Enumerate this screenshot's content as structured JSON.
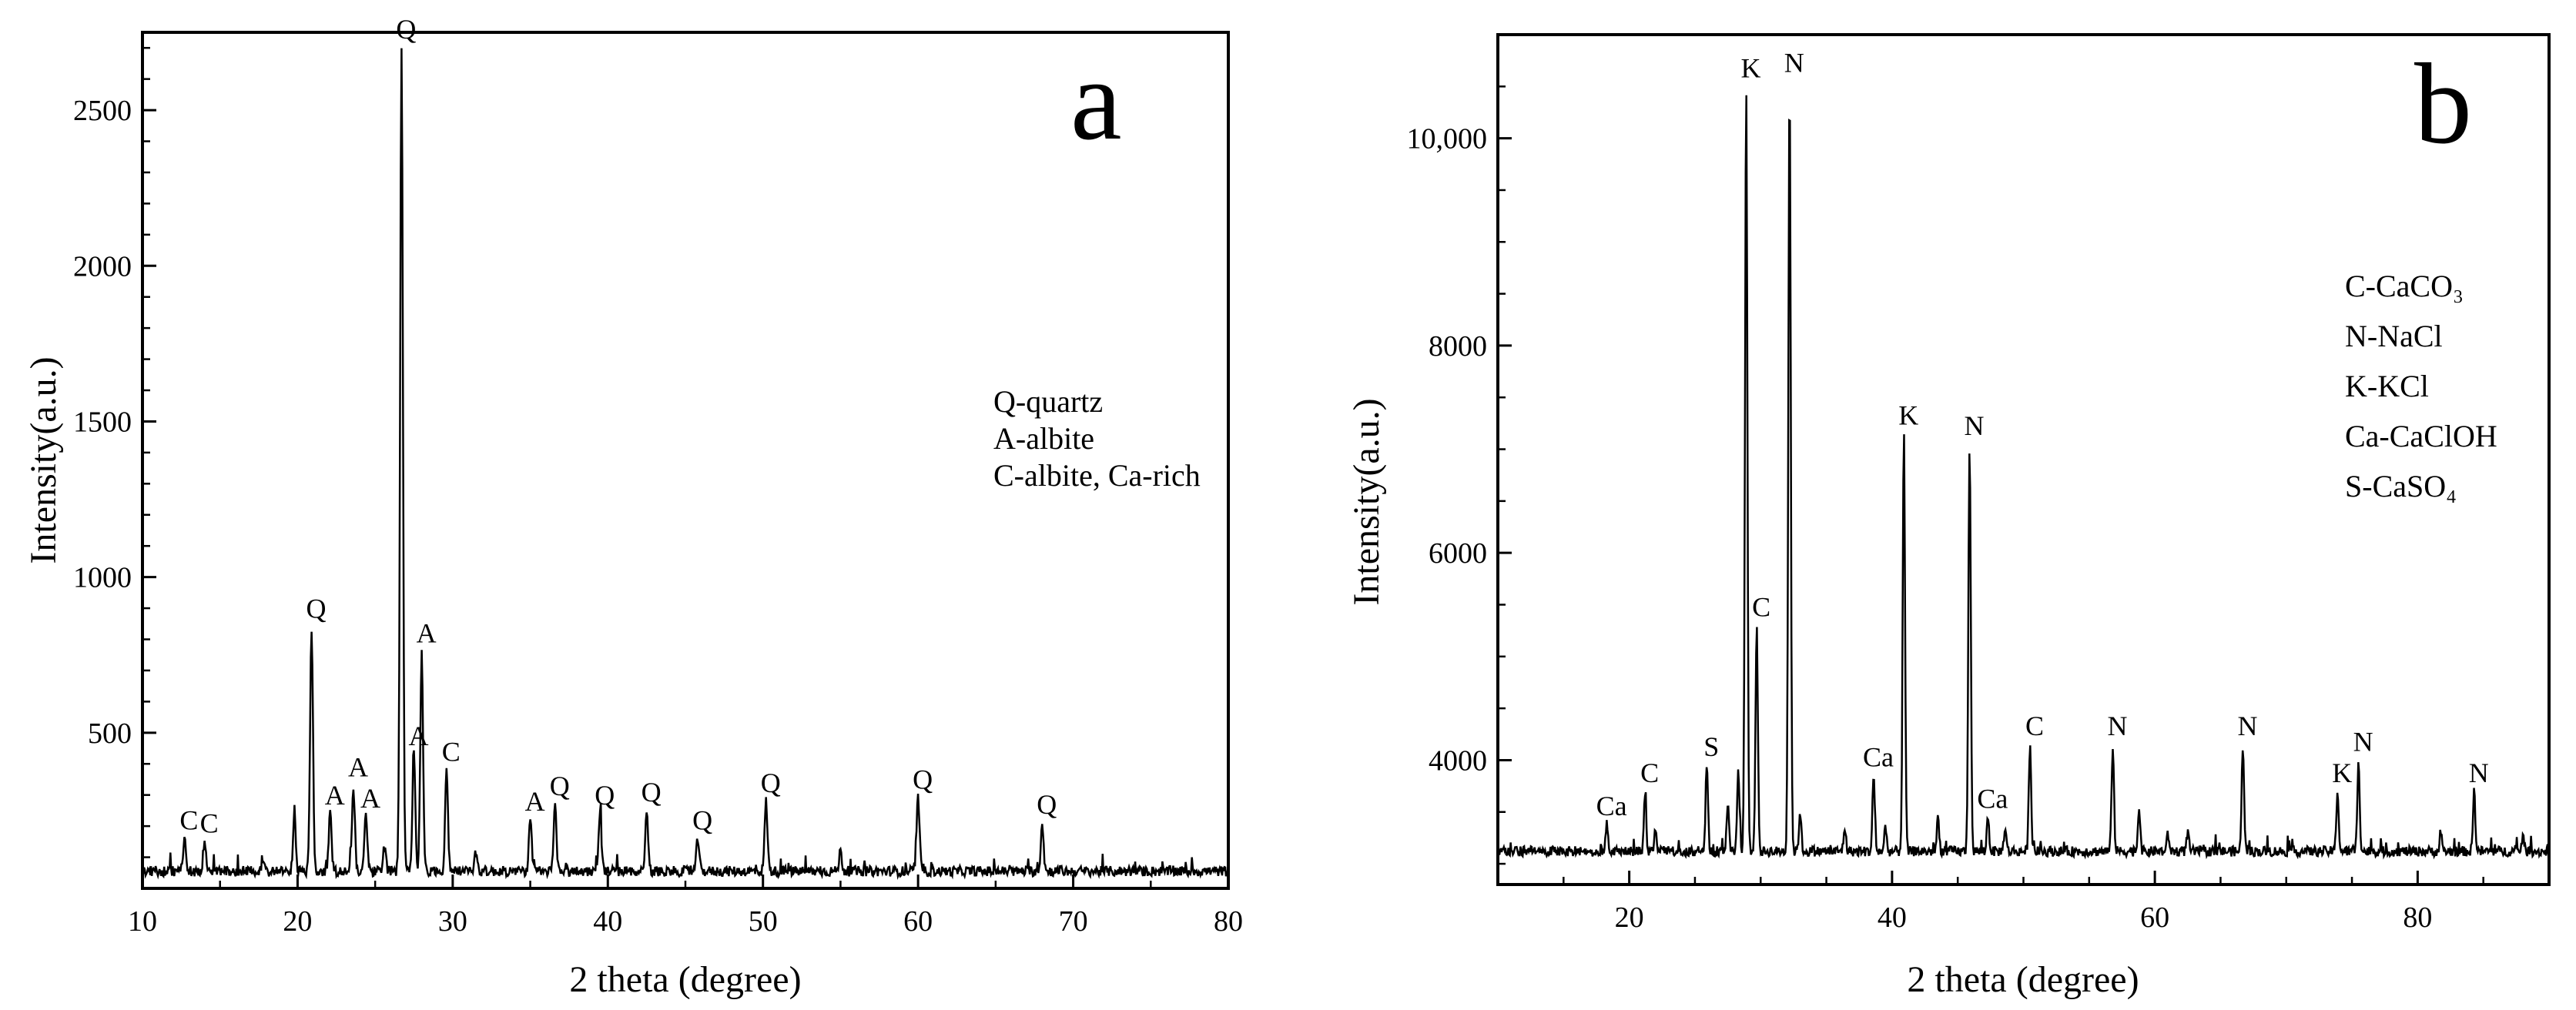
{
  "chart_data": [
    {
      "panel_letter": "a",
      "type": "line",
      "xlabel": "2 theta (degree)",
      "ylabel": "Intensity(a.u.)",
      "xlim": [
        10,
        80
      ],
      "ylim": [
        0,
        2750
      ],
      "x_ticks": [
        10,
        20,
        30,
        40,
        50,
        60,
        70,
        80
      ],
      "x_tick_labels": [
        "10",
        "20",
        "30",
        "40",
        "50",
        "60",
        "70",
        "80"
      ],
      "y_ticks": [
        500,
        1000,
        1500,
        2000,
        2500
      ],
      "y_tick_labels": [
        "500",
        "1000",
        "1500",
        "2000",
        "2500"
      ],
      "legend": [
        "Q-quartz",
        "A-albite",
        "C-albite, Ca-rich"
      ],
      "baseline": 55,
      "peaks": [
        {
          "x": 12.7,
          "y": 160,
          "label": "C"
        },
        {
          "x": 14.0,
          "y": 150,
          "label": "C"
        },
        {
          "x": 17.8,
          "y": 95,
          "label": ""
        },
        {
          "x": 19.8,
          "y": 230,
          "label": ""
        },
        {
          "x": 20.9,
          "y": 840,
          "label": "Q"
        },
        {
          "x": 22.1,
          "y": 240,
          "label": "A"
        },
        {
          "x": 23.6,
          "y": 330,
          "label": "A"
        },
        {
          "x": 24.4,
          "y": 230,
          "label": "A"
        },
        {
          "x": 25.6,
          "y": 140,
          "label": ""
        },
        {
          "x": 26.7,
          "y": 2700,
          "label": "Q"
        },
        {
          "x": 27.5,
          "y": 430,
          "label": "A"
        },
        {
          "x": 28.0,
          "y": 760,
          "label": "A"
        },
        {
          "x": 29.6,
          "y": 380,
          "label": "C"
        },
        {
          "x": 31.5,
          "y": 120,
          "label": ""
        },
        {
          "x": 35.0,
          "y": 220,
          "label": "A"
        },
        {
          "x": 36.6,
          "y": 270,
          "label": "Q"
        },
        {
          "x": 39.5,
          "y": 240,
          "label": "Q"
        },
        {
          "x": 42.5,
          "y": 250,
          "label": "Q"
        },
        {
          "x": 45.8,
          "y": 160,
          "label": "Q"
        },
        {
          "x": 50.2,
          "y": 280,
          "label": "Q"
        },
        {
          "x": 55.0,
          "y": 120,
          "label": ""
        },
        {
          "x": 60.0,
          "y": 290,
          "label": "Q"
        },
        {
          "x": 68.0,
          "y": 210,
          "label": "Q"
        }
      ]
    },
    {
      "panel_letter": "b",
      "type": "line",
      "xlabel": "2 theta (degree)",
      "ylabel": "Intensity(a.u.)",
      "xlim": [
        10,
        90
      ],
      "ylim": [
        2800,
        11000
      ],
      "x_ticks": [
        20,
        40,
        60,
        80
      ],
      "x_tick_labels": [
        "20",
        "40",
        "60",
        "80"
      ],
      "y_ticks": [
        4000,
        6000,
        8000,
        10000
      ],
      "y_tick_labels": [
        "4000",
        "6000",
        "8000",
        "10,000"
      ],
      "legend": [
        "C-CaCO₃",
        "N-NaCl",
        "K-KCl",
        "Ca-CaClOH",
        "S-CaSO₄"
      ],
      "baseline": 3120,
      "peaks": [
        {
          "x": 18.3,
          "y": 3380,
          "label": "Ca"
        },
        {
          "x": 21.2,
          "y": 3700,
          "label": "C"
        },
        {
          "x": 22.0,
          "y": 3350,
          "label": ""
        },
        {
          "x": 25.9,
          "y": 3950,
          "label": "S"
        },
        {
          "x": 27.5,
          "y": 3600,
          "label": ""
        },
        {
          "x": 28.3,
          "y": 3900,
          "label": ""
        },
        {
          "x": 28.9,
          "y": 10500,
          "label": "K"
        },
        {
          "x": 29.7,
          "y": 5300,
          "label": "C"
        },
        {
          "x": 32.2,
          "y": 10550,
          "label": "N"
        },
        {
          "x": 33.0,
          "y": 3500,
          "label": ""
        },
        {
          "x": 36.4,
          "y": 3350,
          "label": ""
        },
        {
          "x": 38.6,
          "y": 3850,
          "label": "Ca"
        },
        {
          "x": 39.5,
          "y": 3350,
          "label": ""
        },
        {
          "x": 40.9,
          "y": 7150,
          "label": "K"
        },
        {
          "x": 43.5,
          "y": 3450,
          "label": ""
        },
        {
          "x": 45.9,
          "y": 7050,
          "label": "N"
        },
        {
          "x": 47.3,
          "y": 3450,
          "label": "Ca"
        },
        {
          "x": 48.6,
          "y": 3350,
          "label": ""
        },
        {
          "x": 50.5,
          "y": 4150,
          "label": "C"
        },
        {
          "x": 56.8,
          "y": 4150,
          "label": "N"
        },
        {
          "x": 58.8,
          "y": 3550,
          "label": ""
        },
        {
          "x": 61.0,
          "y": 3280,
          "label": ""
        },
        {
          "x": 62.5,
          "y": 3300,
          "label": ""
        },
        {
          "x": 66.7,
          "y": 4150,
          "label": "N"
        },
        {
          "x": 73.9,
          "y": 3700,
          "label": "K"
        },
        {
          "x": 75.5,
          "y": 4000,
          "label": "N"
        },
        {
          "x": 81.8,
          "y": 3250,
          "label": ""
        },
        {
          "x": 84.3,
          "y": 3700,
          "label": "N"
        },
        {
          "x": 88.0,
          "y": 3260,
          "label": ""
        }
      ]
    }
  ]
}
